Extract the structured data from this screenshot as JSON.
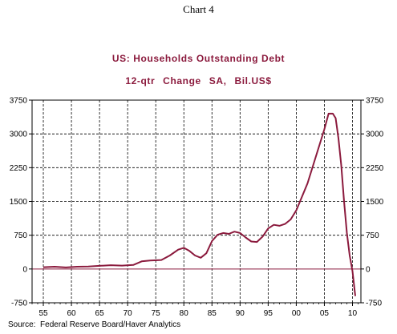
{
  "page_label": "Chart 4",
  "source": "Source:  Federal Reserve Board/Haver Analytics",
  "chart_data": {
    "type": "line",
    "title": "US: Households Outstanding Debt",
    "subtitle_left": "12-qtr Change",
    "subtitle_right": "SA, Bil.US$",
    "xlabel": "",
    "ylabel": "",
    "xlim": [
      1953.0,
      2011.5
    ],
    "ylim": [
      -750,
      3750
    ],
    "x_ticks": [
      {
        "value": 1955,
        "label": "55"
      },
      {
        "value": 1960,
        "label": "60"
      },
      {
        "value": 1965,
        "label": "65"
      },
      {
        "value": 1970,
        "label": "70"
      },
      {
        "value": 1975,
        "label": "75"
      },
      {
        "value": 1980,
        "label": "80"
      },
      {
        "value": 1985,
        "label": "85"
      },
      {
        "value": 1990,
        "label": "90"
      },
      {
        "value": 1995,
        "label": "95"
      },
      {
        "value": 2000,
        "label": "00"
      },
      {
        "value": 2005,
        "label": "05"
      },
      {
        "value": 2010,
        "label": "10"
      }
    ],
    "y_ticks": [
      {
        "value": 3750,
        "label": "3750"
      },
      {
        "value": 3000,
        "label": "3000"
      },
      {
        "value": 2250,
        "label": "2250"
      },
      {
        "value": 1500,
        "label": "1500"
      },
      {
        "value": 750,
        "label": "750"
      },
      {
        "value": 0,
        "label": "0"
      },
      {
        "value": -750,
        "label": "-750"
      }
    ],
    "grid": true,
    "line_color": "#8b1a3d",
    "zero_line_color": "#8b1a3d",
    "series": [
      {
        "x": [
          1955.0,
          1957.0,
          1959.0,
          1961.0,
          1963.0,
          1965.0,
          1967.0,
          1969.0,
          1971.0,
          1972.5,
          1974.0,
          1976.0,
          1977.5,
          1979.0,
          1980.0,
          1981.0,
          1982.0,
          1983.0,
          1984.0,
          1985.0,
          1986.0,
          1987.0,
          1988.0,
          1989.0,
          1990.0,
          1991.0,
          1992.0,
          1993.0,
          1994.0,
          1995.0,
          1996.0,
          1997.0,
          1998.0,
          1999.0,
          2000.0,
          2001.0,
          2002.0,
          2003.0,
          2004.0,
          2005.0,
          2005.75,
          2006.5,
          2007.0,
          2007.5,
          2008.0,
          2008.5,
          2009.0,
          2009.5,
          2010.0,
          2010.5
        ],
        "y": [
          40,
          50,
          35,
          50,
          55,
          70,
          85,
          75,
          90,
          170,
          190,
          200,
          300,
          430,
          470,
          400,
          300,
          250,
          350,
          620,
          760,
          800,
          780,
          830,
          800,
          700,
          610,
          600,
          720,
          900,
          980,
          960,
          1000,
          1100,
          1300,
          1600,
          1900,
          2300,
          2700,
          3100,
          3450,
          3450,
          3350,
          2900,
          2300,
          1500,
          800,
          300,
          -50,
          -600
        ]
      }
    ]
  }
}
